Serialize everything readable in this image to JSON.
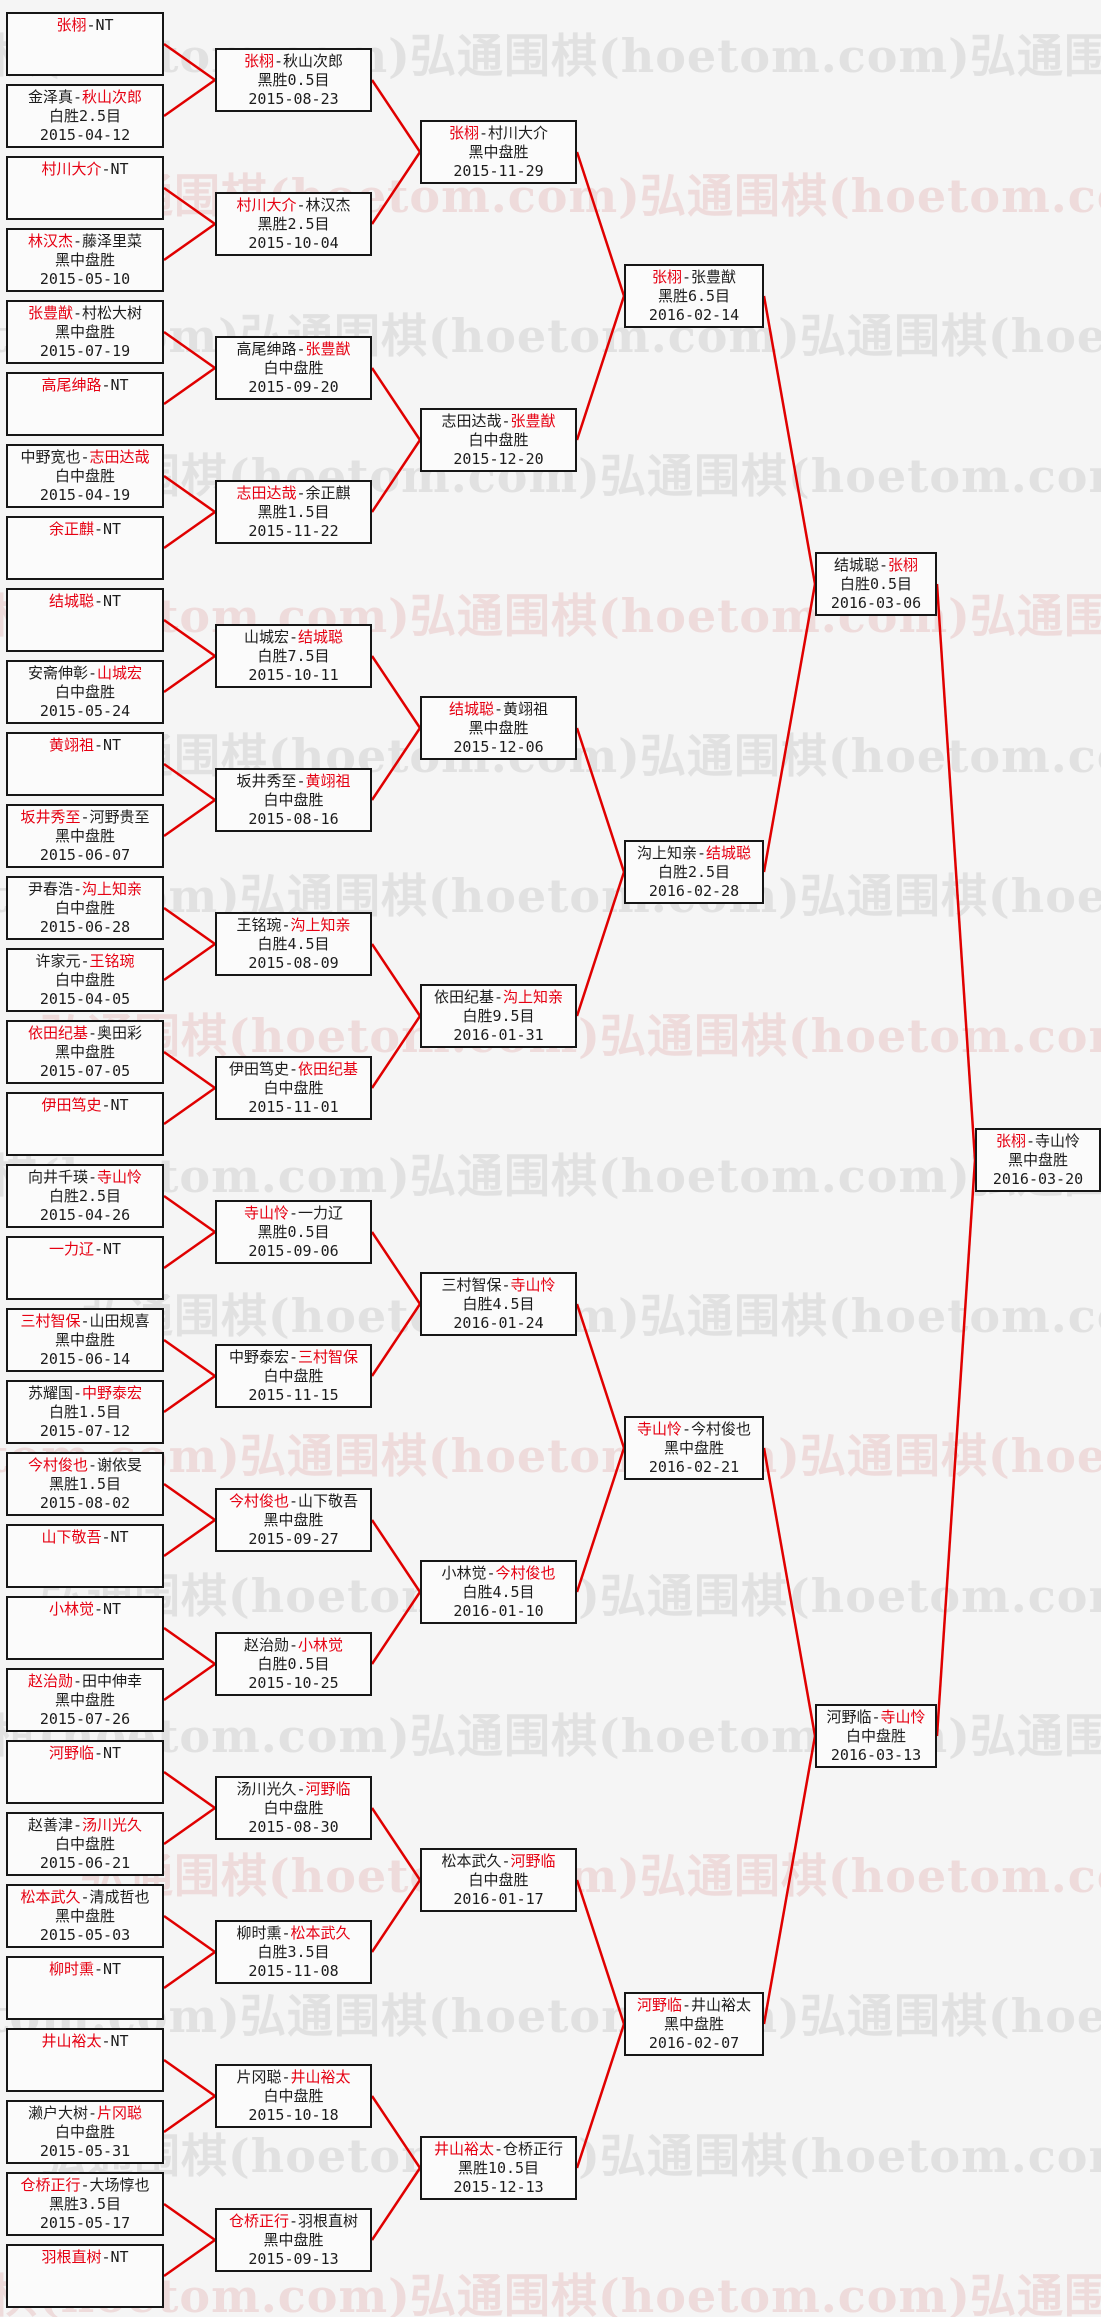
{
  "watermark": {
    "text": "弘通围棋(hoetom.com)"
  },
  "colors": {
    "page_bg": "#f5f5f5",
    "box_bg": "#fbfbfb",
    "box_border": "#161616",
    "winner_red": "#e60012",
    "line_red": "#e00000",
    "watermark_gray": "rgba(185,185,185,0.32)",
    "watermark_pink": "rgba(222,160,160,0.30)"
  },
  "bye_label": "NT",
  "rounds": [
    {
      "matches": [
        {
          "p1": "张栩",
          "p2": "NT",
          "w": 1
        },
        {
          "p1": "金泽真",
          "p2": "秋山次郎",
          "w": 2,
          "result": "白胜2.5目",
          "date": "2015-04-12"
        },
        {
          "p1": "村川大介",
          "p2": "NT",
          "w": 1
        },
        {
          "p1": "林汉杰",
          "p2": "藤泽里菜",
          "w": 1,
          "result": "黑中盘胜",
          "date": "2015-05-10"
        },
        {
          "p1": "张豊猷",
          "p2": "村松大树",
          "w": 1,
          "result": "黑中盘胜",
          "date": "2015-07-19"
        },
        {
          "p1": "高尾绅路",
          "p2": "NT",
          "w": 1
        },
        {
          "p1": "中野宽也",
          "p2": "志田达哉",
          "w": 2,
          "result": "白中盘胜",
          "date": "2015-04-19"
        },
        {
          "p1": "余正麒",
          "p2": "NT",
          "w": 1
        },
        {
          "p1": "结城聪",
          "p2": "NT",
          "w": 1
        },
        {
          "p1": "安斋伸彰",
          "p2": "山城宏",
          "w": 2,
          "result": "白中盘胜",
          "date": "2015-05-24"
        },
        {
          "p1": "黄翊祖",
          "p2": "NT",
          "w": 1
        },
        {
          "p1": "坂井秀至",
          "p2": "河野贵至",
          "w": 1,
          "result": "黑中盘胜",
          "date": "2015-06-07"
        },
        {
          "p1": "尹春浩",
          "p2": "沟上知亲",
          "w": 2,
          "result": "白中盘胜",
          "date": "2015-06-28"
        },
        {
          "p1": "许家元",
          "p2": "王铭琬",
          "w": 2,
          "result": "白中盘胜",
          "date": "2015-04-05"
        },
        {
          "p1": "依田纪基",
          "p2": "奥田彩",
          "w": 1,
          "result": "黑中盘胜",
          "date": "2015-07-05"
        },
        {
          "p1": "伊田笃史",
          "p2": "NT",
          "w": 1
        },
        {
          "p1": "向井千瑛",
          "p2": "寺山怜",
          "w": 2,
          "result": "白胜2.5目",
          "date": "2015-04-26"
        },
        {
          "p1": "一力辽",
          "p2": "NT",
          "w": 1
        },
        {
          "p1": "三村智保",
          "p2": "山田规喜",
          "w": 1,
          "result": "黑中盘胜",
          "date": "2015-06-14"
        },
        {
          "p1": "苏耀国",
          "p2": "中野泰宏",
          "w": 2,
          "result": "白胜1.5目",
          "date": "2015-07-12"
        },
        {
          "p1": "今村俊也",
          "p2": "谢依旻",
          "w": 1,
          "result": "黑胜1.5目",
          "date": "2015-08-02"
        },
        {
          "p1": "山下敬吾",
          "p2": "NT",
          "w": 1
        },
        {
          "p1": "小林觉",
          "p2": "NT",
          "w": 1
        },
        {
          "p1": "赵治勋",
          "p2": "田中伸幸",
          "w": 1,
          "result": "黑中盘胜",
          "date": "2015-07-26"
        },
        {
          "p1": "河野临",
          "p2": "NT",
          "w": 1
        },
        {
          "p1": "赵善津",
          "p2": "汤川光久",
          "w": 2,
          "result": "白中盘胜",
          "date": "2015-06-21"
        },
        {
          "p1": "松本武久",
          "p2": "清成哲也",
          "w": 1,
          "result": "黑中盘胜",
          "date": "2015-05-03"
        },
        {
          "p1": "柳时熏",
          "p2": "NT",
          "w": 1
        },
        {
          "p1": "井山裕太",
          "p2": "NT",
          "w": 1
        },
        {
          "p1": "濑户大树",
          "p2": "片冈聪",
          "w": 2,
          "result": "白中盘胜",
          "date": "2015-05-31"
        },
        {
          "p1": "仓桥正行",
          "p2": "大场惇也",
          "w": 1,
          "result": "黑胜3.5目",
          "date": "2015-05-17"
        },
        {
          "p1": "羽根直树",
          "p2": "NT",
          "w": 1
        }
      ]
    },
    {
      "matches": [
        {
          "p1": "张栩",
          "p2": "秋山次郎",
          "w": 1,
          "result": "黑胜0.5目",
          "date": "2015-08-23"
        },
        {
          "p1": "村川大介",
          "p2": "林汉杰",
          "w": 1,
          "result": "黑胜2.5目",
          "date": "2015-10-04"
        },
        {
          "p1": "高尾绅路",
          "p2": "张豊猷",
          "w": 2,
          "result": "白中盘胜",
          "date": "2015-09-20"
        },
        {
          "p1": "志田达哉",
          "p2": "余正麒",
          "w": 1,
          "result": "黑胜1.5目",
          "date": "2015-11-22"
        },
        {
          "p1": "山城宏",
          "p2": "结城聪",
          "w": 2,
          "result": "白胜7.5目",
          "date": "2015-10-11"
        },
        {
          "p1": "坂井秀至",
          "p2": "黄翊祖",
          "w": 2,
          "result": "白中盘胜",
          "date": "2015-08-16"
        },
        {
          "p1": "王铭琬",
          "p2": "沟上知亲",
          "w": 2,
          "result": "白胜4.5目",
          "date": "2015-08-09"
        },
        {
          "p1": "伊田笃史",
          "p2": "依田纪基",
          "w": 2,
          "result": "白中盘胜",
          "date": "2015-11-01"
        },
        {
          "p1": "寺山怜",
          "p2": "一力辽",
          "w": 1,
          "result": "黑胜0.5目",
          "date": "2015-09-06"
        },
        {
          "p1": "中野泰宏",
          "p2": "三村智保",
          "w": 2,
          "result": "白中盘胜",
          "date": "2015-11-15"
        },
        {
          "p1": "今村俊也",
          "p2": "山下敬吾",
          "w": 1,
          "result": "黑中盘胜",
          "date": "2015-09-27"
        },
        {
          "p1": "赵治勋",
          "p2": "小林觉",
          "w": 2,
          "result": "白胜0.5目",
          "date": "2015-10-25"
        },
        {
          "p1": "汤川光久",
          "p2": "河野临",
          "w": 2,
          "result": "白中盘胜",
          "date": "2015-08-30"
        },
        {
          "p1": "柳时熏",
          "p2": "松本武久",
          "w": 2,
          "result": "白胜3.5目",
          "date": "2015-11-08"
        },
        {
          "p1": "片冈聪",
          "p2": "井山裕太",
          "w": 2,
          "result": "白中盘胜",
          "date": "2015-10-18"
        },
        {
          "p1": "仓桥正行",
          "p2": "羽根直树",
          "w": 1,
          "result": "黑中盘胜",
          "date": "2015-09-13"
        }
      ]
    },
    {
      "matches": [
        {
          "p1": "张栩",
          "p2": "村川大介",
          "w": 1,
          "result": "黑中盘胜",
          "date": "2015-11-29"
        },
        {
          "p1": "志田达哉",
          "p2": "张豊猷",
          "w": 2,
          "result": "白中盘胜",
          "date": "2015-12-20"
        },
        {
          "p1": "结城聪",
          "p2": "黄翊祖",
          "w": 1,
          "result": "黑中盘胜",
          "date": "2015-12-06"
        },
        {
          "p1": "依田纪基",
          "p2": "沟上知亲",
          "w": 2,
          "result": "白胜9.5目",
          "date": "2016-01-31"
        },
        {
          "p1": "三村智保",
          "p2": "寺山怜",
          "w": 2,
          "result": "白胜4.5目",
          "date": "2016-01-24"
        },
        {
          "p1": "小林觉",
          "p2": "今村俊也",
          "w": 2,
          "result": "白胜4.5目",
          "date": "2016-01-10"
        },
        {
          "p1": "松本武久",
          "p2": "河野临",
          "w": 2,
          "result": "白中盘胜",
          "date": "2016-01-17"
        },
        {
          "p1": "井山裕太",
          "p2": "仓桥正行",
          "w": 1,
          "result": "黑胜10.5目",
          "date": "2015-12-13"
        }
      ]
    },
    {
      "matches": [
        {
          "p1": "张栩",
          "p2": "张豊猷",
          "w": 1,
          "result": "黑胜6.5目",
          "date": "2016-02-14"
        },
        {
          "p1": "沟上知亲",
          "p2": "结城聪",
          "w": 2,
          "result": "白胜2.5目",
          "date": "2016-02-28"
        },
        {
          "p1": "寺山怜",
          "p2": "今村俊也",
          "w": 1,
          "result": "黑中盘胜",
          "date": "2016-02-21"
        },
        {
          "p1": "河野临",
          "p2": "井山裕太",
          "w": 1,
          "result": "黑中盘胜",
          "date": "2016-02-07"
        }
      ]
    },
    {
      "matches": [
        {
          "p1": "结城聪",
          "p2": "张栩",
          "w": 2,
          "result": "白胜0.5目",
          "date": "2016-03-06"
        },
        {
          "p1": "河野临",
          "p2": "寺山怜",
          "w": 2,
          "result": "白中盘胜",
          "date": "2016-03-13"
        }
      ]
    },
    {
      "matches": [
        {
          "p1": "张栩",
          "p2": "寺山怜",
          "w": 1,
          "result": "黑中盘胜",
          "date": "2016-03-20"
        }
      ]
    }
  ]
}
